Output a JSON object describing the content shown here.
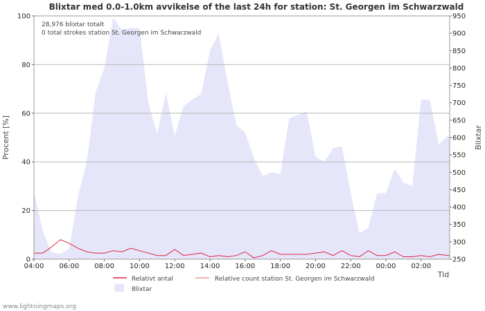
{
  "chart_data": {
    "type": "area",
    "title": "Blixtar med 0.0-1.0km avvikelse of the last 24h for station: St. Georgen im Schwarzwald",
    "annotations": [
      "28,976 blixtar totalt",
      "0 total strokes station St. Georgen im Schwarzwald"
    ],
    "xlabel": "Tid",
    "ylabel_left": "Procent   [%]",
    "ylabel_right": "Blixtar",
    "x_ticks": [
      "04:00",
      "06:00",
      "08:00",
      "10:00",
      "12:00",
      "14:00",
      "16:00",
      "18:00",
      "20:00",
      "22:00",
      "00:00",
      "02:00"
    ],
    "y_left_ticks": [
      0,
      20,
      40,
      60,
      80,
      100
    ],
    "y_right_ticks": [
      250,
      300,
      350,
      400,
      450,
      500,
      550,
      600,
      650,
      700,
      750,
      800,
      850,
      900,
      950
    ],
    "y_left_range": [
      0,
      100
    ],
    "y_right_range": [
      250,
      950
    ],
    "x_hours": [
      4,
      4.5,
      5,
      5.5,
      6,
      6.5,
      7,
      7.5,
      8,
      8.5,
      9,
      9.5,
      10,
      10.5,
      11,
      11.5,
      12,
      12.5,
      13,
      13.5,
      14,
      14.5,
      15,
      15.5,
      16,
      16.5,
      17,
      17.5,
      18,
      18.5,
      19,
      19.5,
      20,
      20.5,
      21,
      21.5,
      22,
      22.5,
      23,
      23.5,
      24,
      24.5,
      25,
      25.5,
      26,
      26.5,
      27,
      27.5
    ],
    "series": [
      {
        "name": "Blixtar",
        "axis": "right",
        "color": "#e6e6fa",
        "values": [
          445,
          330,
          270,
          265,
          280,
          430,
          530,
          730,
          800,
          945,
          910,
          915,
          915,
          700,
          610,
          730,
          605,
          690,
          710,
          725,
          850,
          900,
          760,
          635,
          615,
          540,
          490,
          500,
          495,
          655,
          665,
          675,
          545,
          530,
          570,
          575,
          440,
          325,
          340,
          440,
          440,
          510,
          470,
          460,
          710,
          708,
          580,
          605
        ]
      },
      {
        "name": "Relativt antal",
        "axis": "left",
        "color": "#dd2244",
        "values": [
          2.5,
          2.5,
          5,
          8,
          6.5,
          4.5,
          3,
          2.5,
          2.5,
          3.5,
          3,
          4.5,
          3.5,
          2.5,
          1.5,
          1.5,
          4,
          1.5,
          2,
          2.5,
          1,
          1.5,
          1,
          1.5,
          3,
          0.5,
          1.5,
          3.5,
          2,
          2,
          2,
          2,
          2.5,
          3,
          1.5,
          3.5,
          1.5,
          1,
          3.5,
          1.5,
          1.5,
          3,
          1,
          1,
          1.5,
          1,
          2,
          1.5
        ]
      },
      {
        "name": "Relative count station St. Georgen im Schwarzwald",
        "axis": "left",
        "color": "#ee9999",
        "values": []
      }
    ],
    "legend": [
      "Relativt antal",
      "Relative count station St. Georgen im Schwarzwald",
      "Blixtar"
    ]
  },
  "credit": "www.lightningmaps.org"
}
